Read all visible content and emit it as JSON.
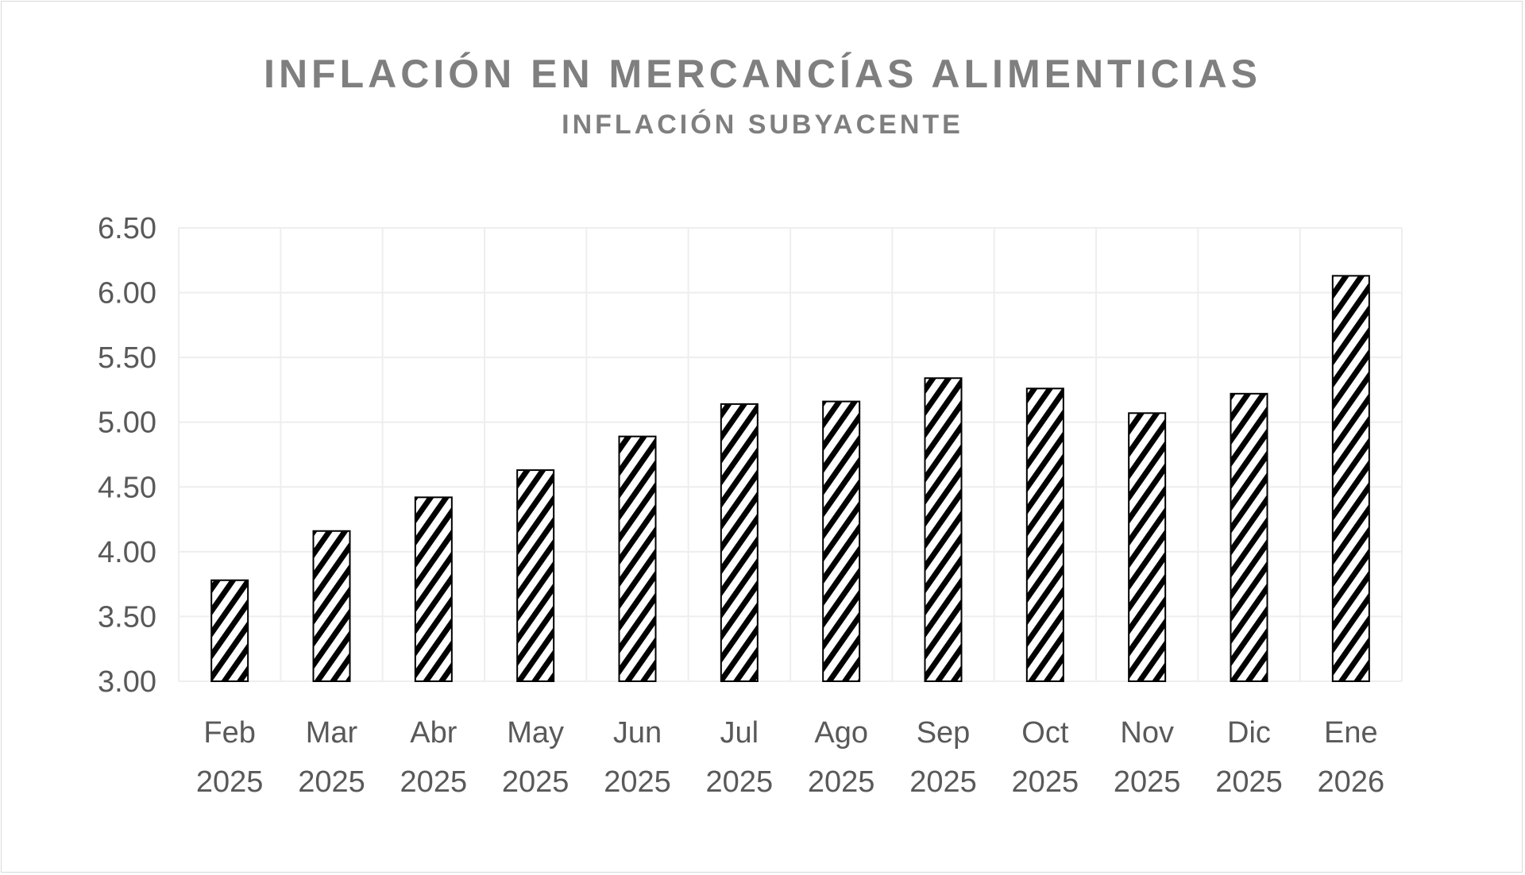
{
  "chart_data": {
    "type": "bar",
    "title": "INFLACIÓN EN MERCANCÍAS ALIMENTICIAS",
    "subtitle": "INFLACIÓN SUBYACENTE",
    "xlabel": "",
    "ylabel": "",
    "categories": [
      [
        "Feb",
        "2025"
      ],
      [
        "Mar",
        "2025"
      ],
      [
        "Abr",
        "2025"
      ],
      [
        "May",
        "2025"
      ],
      [
        "Jun",
        "2025"
      ],
      [
        "Jul",
        "2025"
      ],
      [
        "Ago",
        "2025"
      ],
      [
        "Sep",
        "2025"
      ],
      [
        "Oct",
        "2025"
      ],
      [
        "Nov",
        "2025"
      ],
      [
        "Dic",
        "2025"
      ],
      [
        "Ene",
        "2026"
      ]
    ],
    "values": [
      3.78,
      4.16,
      4.42,
      4.63,
      4.89,
      5.14,
      5.16,
      5.34,
      5.26,
      5.07,
      5.22,
      6.13
    ],
    "ylim": [
      3.0,
      6.5
    ],
    "yticks": [
      "3.00",
      "3.50",
      "4.00",
      "4.50",
      "5.00",
      "5.50",
      "6.00",
      "6.50"
    ],
    "grid": true,
    "legend": "none",
    "bar_fill": "black diagonal hatch on white",
    "colors": {
      "bar_stroke": "#000000",
      "grid": "#eeeeee",
      "text": "#595959",
      "title": "#7f7f7f"
    }
  }
}
